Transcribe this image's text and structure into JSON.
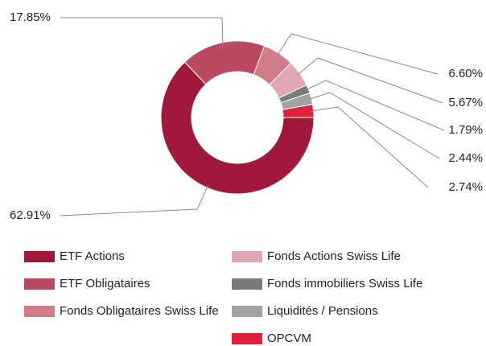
{
  "chart_data": {
    "type": "donut",
    "categories": [
      "ETF Actions",
      "ETF Obligataires",
      "Fonds Obligataires Swiss Life",
      "Fonds Actions Swiss Life",
      "Fonds immobiliers Swiss Life",
      "Liquidités / Pensions",
      "OPCVM"
    ],
    "values": [
      62.91,
      17.85,
      6.6,
      5.67,
      1.79,
      2.44,
      2.74
    ],
    "value_labels": [
      "62.91%",
      "17.85%",
      "6.60%",
      "5.67%",
      "1.79%",
      "2.44%",
      "2.74%"
    ],
    "colors": [
      "#a0193a",
      "#b94a60",
      "#d27b8a",
      "#e0a7b2",
      "#7a7a7a",
      "#a3a3a3",
      "#e0203a"
    ],
    "start_angle": 90,
    "legend": "bottom"
  }
}
